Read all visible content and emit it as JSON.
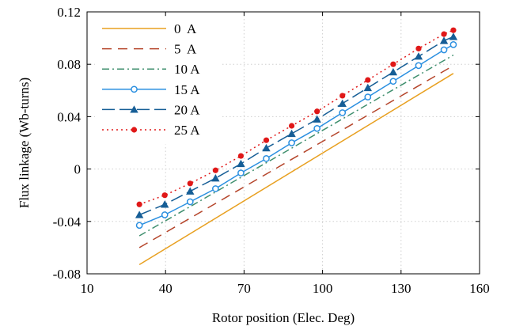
{
  "chart_data": {
    "type": "line",
    "title": "",
    "xlabel": "Rotor position (Elec. Deg)",
    "ylabel": "Flux linkage (Wb-turns)",
    "xlim": [
      10,
      160
    ],
    "ylim": [
      -0.08,
      0.12
    ],
    "xticks": [
      10,
      40,
      70,
      100,
      130,
      160
    ],
    "xtick_labels": [
      "10",
      "40",
      "70",
      "100",
      "130",
      "160"
    ],
    "yticks": [
      -0.08,
      -0.04,
      0,
      0.04,
      0.08,
      0.12
    ],
    "ytick_labels": [
      "-0.08",
      "-0.04",
      "0",
      "0.04",
      "0.08",
      "0.12"
    ],
    "grid": true,
    "legend_position": "top-left",
    "series": [
      {
        "name": "0  A",
        "color": "#e8a020",
        "dash": "solid",
        "marker": "none",
        "x": [
          30,
          150
        ],
        "y": [
          -0.073,
          0.073
        ]
      },
      {
        "name": "5  A",
        "color": "#b5452b",
        "dash": "dashed",
        "marker": "none",
        "x": [
          30,
          150
        ],
        "y": [
          -0.06,
          0.079
        ]
      },
      {
        "name": "10 A",
        "color": "#3f8f6e",
        "dash": "dashdot",
        "marker": "none",
        "x": [
          30,
          150
        ],
        "y": [
          -0.051,
          0.087
        ]
      },
      {
        "name": "15 A",
        "color": "#2a8fe0",
        "dash": "solid",
        "marker": "open-circle",
        "x": [
          30,
          39.7,
          49.4,
          59.1,
          68.8,
          78.5,
          88.2,
          97.9,
          107.6,
          117.3,
          127,
          136.7,
          146.4,
          150
        ],
        "y": [
          -0.043,
          -0.035,
          -0.025,
          -0.015,
          -0.003,
          0.008,
          0.02,
          0.031,
          0.043,
          0.055,
          0.067,
          0.079,
          0.091,
          0.095
        ]
      },
      {
        "name": "20 A",
        "color": "#165e96",
        "dash": "longdash",
        "marker": "triangle",
        "x": [
          30,
          39.7,
          49.4,
          59.1,
          68.8,
          78.5,
          88.2,
          97.9,
          107.6,
          117.3,
          127,
          136.7,
          146.4,
          150
        ],
        "y": [
          -0.035,
          -0.027,
          -0.017,
          -0.007,
          0.004,
          0.016,
          0.027,
          0.038,
          0.05,
          0.062,
          0.074,
          0.086,
          0.098,
          0.101
        ]
      },
      {
        "name": "25 A",
        "color": "#e01818",
        "dash": "dotted",
        "marker": "filled-circle",
        "x": [
          30,
          39.7,
          49.4,
          59.1,
          68.8,
          78.5,
          88.2,
          97.9,
          107.6,
          117.3,
          127,
          136.7,
          146.4,
          150
        ],
        "y": [
          -0.027,
          -0.02,
          -0.011,
          -0.001,
          0.01,
          0.022,
          0.033,
          0.044,
          0.056,
          0.068,
          0.08,
          0.092,
          0.103,
          0.106
        ]
      }
    ]
  }
}
